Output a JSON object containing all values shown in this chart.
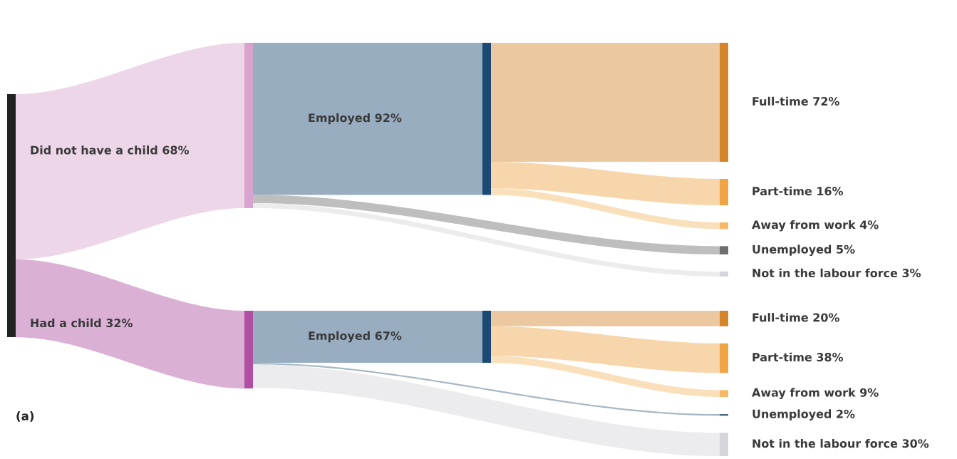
{
  "chart_data": {
    "type": "other",
    "categories": [
      "Did not have a child",
      "Employed",
      "Full-time",
      "Part-time",
      "Away from work",
      "Unemployed",
      "Not in the labour force",
      "Had a child",
      "Employed",
      "Full-time",
      "Part-time",
      "Away from work",
      "Unemployed",
      "Not in the labour force"
    ],
    "values": [
      68,
      92,
      72,
      16,
      4,
      5,
      3,
      32,
      67,
      20,
      38,
      9,
      2,
      30
    ],
    "value_labels": [
      "68%",
      "92%",
      "72%",
      "16%",
      "4%",
      "5%",
      "3%",
      "32%",
      "67%",
      "20%",
      "38%",
      "9%",
      "2%",
      "30%"
    ],
    "colors": [
      "#d9a3cf",
      "#1c4a75",
      "#d4852c",
      "#f0a545",
      "#f5b868",
      "#6e6e6e",
      "#d5d5da",
      "#b04fa2",
      "#1c4a75",
      "#d4852c",
      "#f0a545",
      "#f5b868",
      "#3a5f7a",
      "#d5d5da"
    ],
    "annotations": [
      "(a)"
    ]
  }
}
